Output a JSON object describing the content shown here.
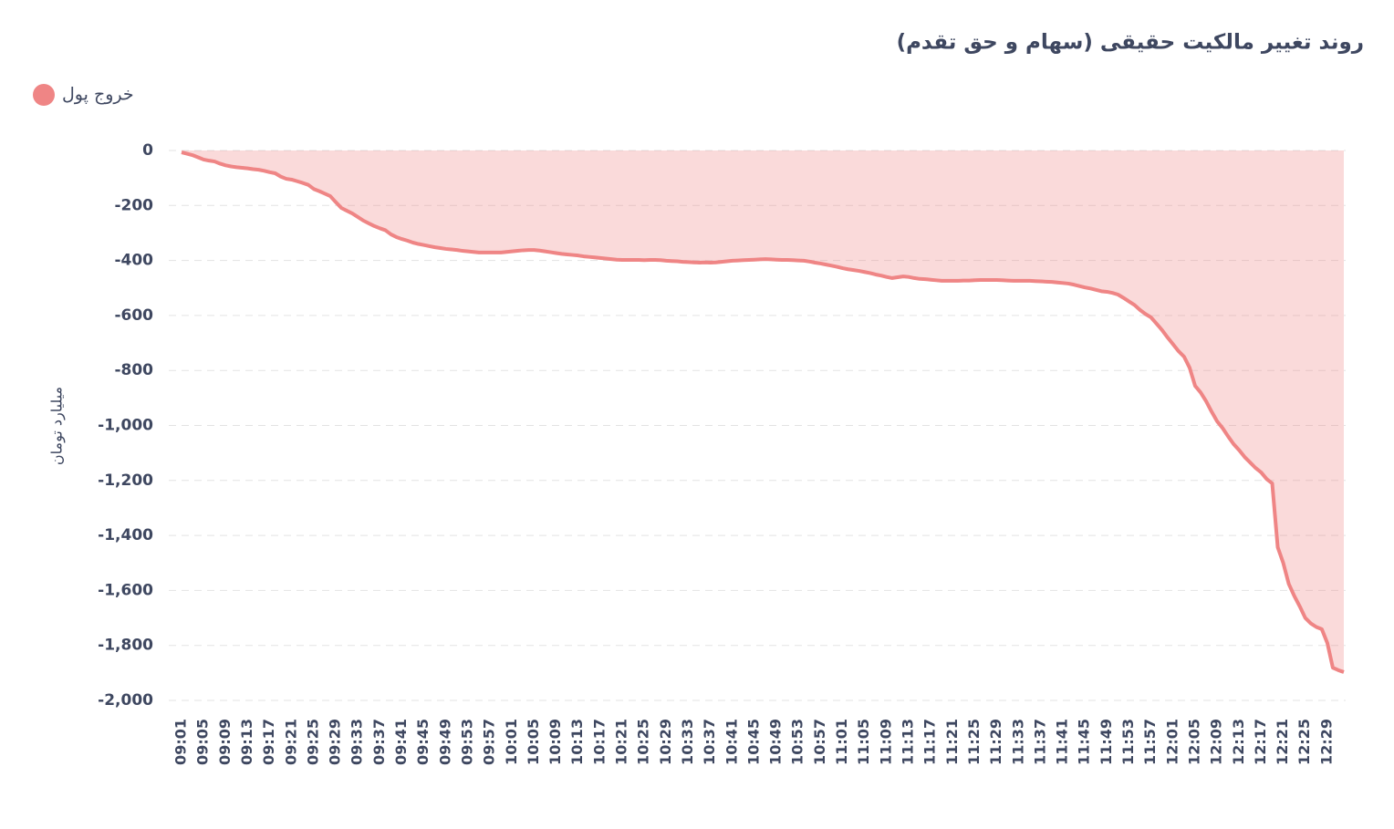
{
  "chart_data": {
    "type": "area",
    "title": "روند تغییر مالکیت حقیقی (سهام و حق تقدم)",
    "y_label": "میلیارد تومان",
    "legend": "top-left",
    "grid": true,
    "categories": [
      "09:01",
      null,
      null,
      null,
      "09:05",
      null,
      null,
      null,
      "09:09",
      null,
      null,
      null,
      "09:13",
      null,
      null,
      null,
      "09:17",
      null,
      null,
      null,
      "09:21",
      null,
      null,
      null,
      "09:25",
      null,
      null,
      null,
      "09:29",
      null,
      null,
      null,
      "09:33",
      null,
      null,
      null,
      "09:37",
      null,
      null,
      null,
      "09:41",
      null,
      null,
      null,
      "09:45",
      null,
      null,
      null,
      "09:49",
      null,
      null,
      null,
      "09:53",
      null,
      null,
      null,
      "09:57",
      null,
      null,
      null,
      "10:01",
      null,
      null,
      null,
      "10:05",
      null,
      null,
      null,
      "10:09",
      null,
      null,
      null,
      "10:13",
      null,
      null,
      null,
      "10:17",
      null,
      null,
      null,
      "10:21",
      null,
      null,
      null,
      "10:25",
      null,
      null,
      null,
      "10:29",
      null,
      null,
      null,
      "10:33",
      null,
      null,
      null,
      "10:37",
      null,
      null,
      null,
      "10:41",
      null,
      null,
      null,
      "10:45",
      null,
      null,
      null,
      "10:49",
      null,
      null,
      null,
      "10:53",
      null,
      null,
      null,
      "10:57",
      null,
      null,
      null,
      "11:01",
      null,
      null,
      null,
      "11:05",
      null,
      null,
      null,
      "11:09",
      null,
      null,
      null,
      "11:13",
      null,
      null,
      null,
      "11:17",
      null,
      null,
      null,
      "11:21",
      null,
      null,
      null,
      "11:25",
      null,
      null,
      null,
      "11:29",
      null,
      null,
      null,
      "11:33",
      null,
      null,
      null,
      "11:37",
      null,
      null,
      null,
      "11:41",
      null,
      null,
      null,
      "11:45",
      null,
      null,
      null,
      "11:49",
      null,
      null,
      null,
      "11:53",
      null,
      null,
      null,
      "11:57",
      null,
      null,
      null,
      "12:01",
      null,
      null,
      null,
      "12:05",
      null,
      null,
      null,
      "12:09",
      null,
      null,
      null,
      "12:13",
      null,
      null,
      null,
      "12:17",
      null,
      null,
      null,
      "12:21",
      null,
      null,
      null,
      "12:25",
      null,
      null,
      null,
      "12:29",
      null,
      null,
      null
    ],
    "series": [
      {
        "name": "خروج پول",
        "color": "#ef8585",
        "values": [
          -7,
          -12,
          -17,
          -25,
          -33,
          -37,
          -40,
          -48,
          -54,
          -58,
          -61,
          -63,
          -65,
          -68,
          -70,
          -74,
          -79,
          -83,
          -95,
          -103,
          -106,
          -112,
          -118,
          -125,
          -140,
          -148,
          -157,
          -166,
          -188,
          -209,
          -219,
          -229,
          -242,
          -255,
          -265,
          -275,
          -283,
          -290,
          -305,
          -315,
          -322,
          -328,
          -335,
          -340,
          -344,
          -348,
          -352,
          -355,
          -358,
          -360,
          -362,
          -365,
          -367,
          -369,
          -371,
          -371,
          -371,
          -371,
          -371,
          -369,
          -367,
          -365,
          -363,
          -362,
          -362,
          -364,
          -367,
          -370,
          -373,
          -376,
          -378,
          -380,
          -382,
          -385,
          -387,
          -389,
          -391,
          -393,
          -395,
          -397,
          -398,
          -398,
          -398,
          -398,
          -399,
          -398,
          -398,
          -399,
          -401,
          -402,
          -403,
          -405,
          -406,
          -407,
          -408,
          -407,
          -408,
          -407,
          -405,
          -403,
          -401,
          -400,
          -399,
          -398,
          -397,
          -396,
          -395,
          -396,
          -397,
          -398,
          -398,
          -399,
          -400,
          -401,
          -404,
          -408,
          -411,
          -415,
          -419,
          -423,
          -428,
          -432,
          -435,
          -438,
          -442,
          -446,
          -451,
          -455,
          -460,
          -464,
          -461,
          -458,
          -460,
          -464,
          -467,
          -468,
          -470,
          -472,
          -474,
          -474,
          -474,
          -474,
          -473,
          -473,
          -472,
          -471,
          -471,
          -471,
          -471,
          -472,
          -473,
          -474,
          -474,
          -474,
          -474,
          -475,
          -476,
          -477,
          -478,
          -480,
          -482,
          -484,
          -488,
          -493,
          -498,
          -502,
          -507,
          -512,
          -514,
          -518,
          -524,
          -536,
          -549,
          -562,
          -580,
          -595,
          -607,
          -630,
          -653,
          -680,
          -705,
          -730,
          -750,
          -790,
          -856,
          -880,
          -912,
          -950,
          -985,
          -1010,
          -1040,
          -1068,
          -1090,
          -1115,
          -1135,
          -1155,
          -1171,
          -1195,
          -1211,
          -1443,
          -1500,
          -1576,
          -1620,
          -1658,
          -1700,
          -1720,
          -1733,
          -1741,
          -1791,
          -1881,
          -1890,
          -1897
        ]
      }
    ],
    "ylim": [
      -2000,
      0
    ],
    "yticks": [
      {
        "value": -2000,
        "label": "-2,000"
      },
      {
        "value": -1800,
        "label": "-1,800"
      },
      {
        "value": -1600,
        "label": "-1,600"
      },
      {
        "value": -1400,
        "label": "-1,400"
      },
      {
        "value": -1200,
        "label": "-1,200"
      },
      {
        "value": -1000,
        "label": "-1,000"
      },
      -800,
      -600,
      -400,
      -200,
      0
    ]
  }
}
